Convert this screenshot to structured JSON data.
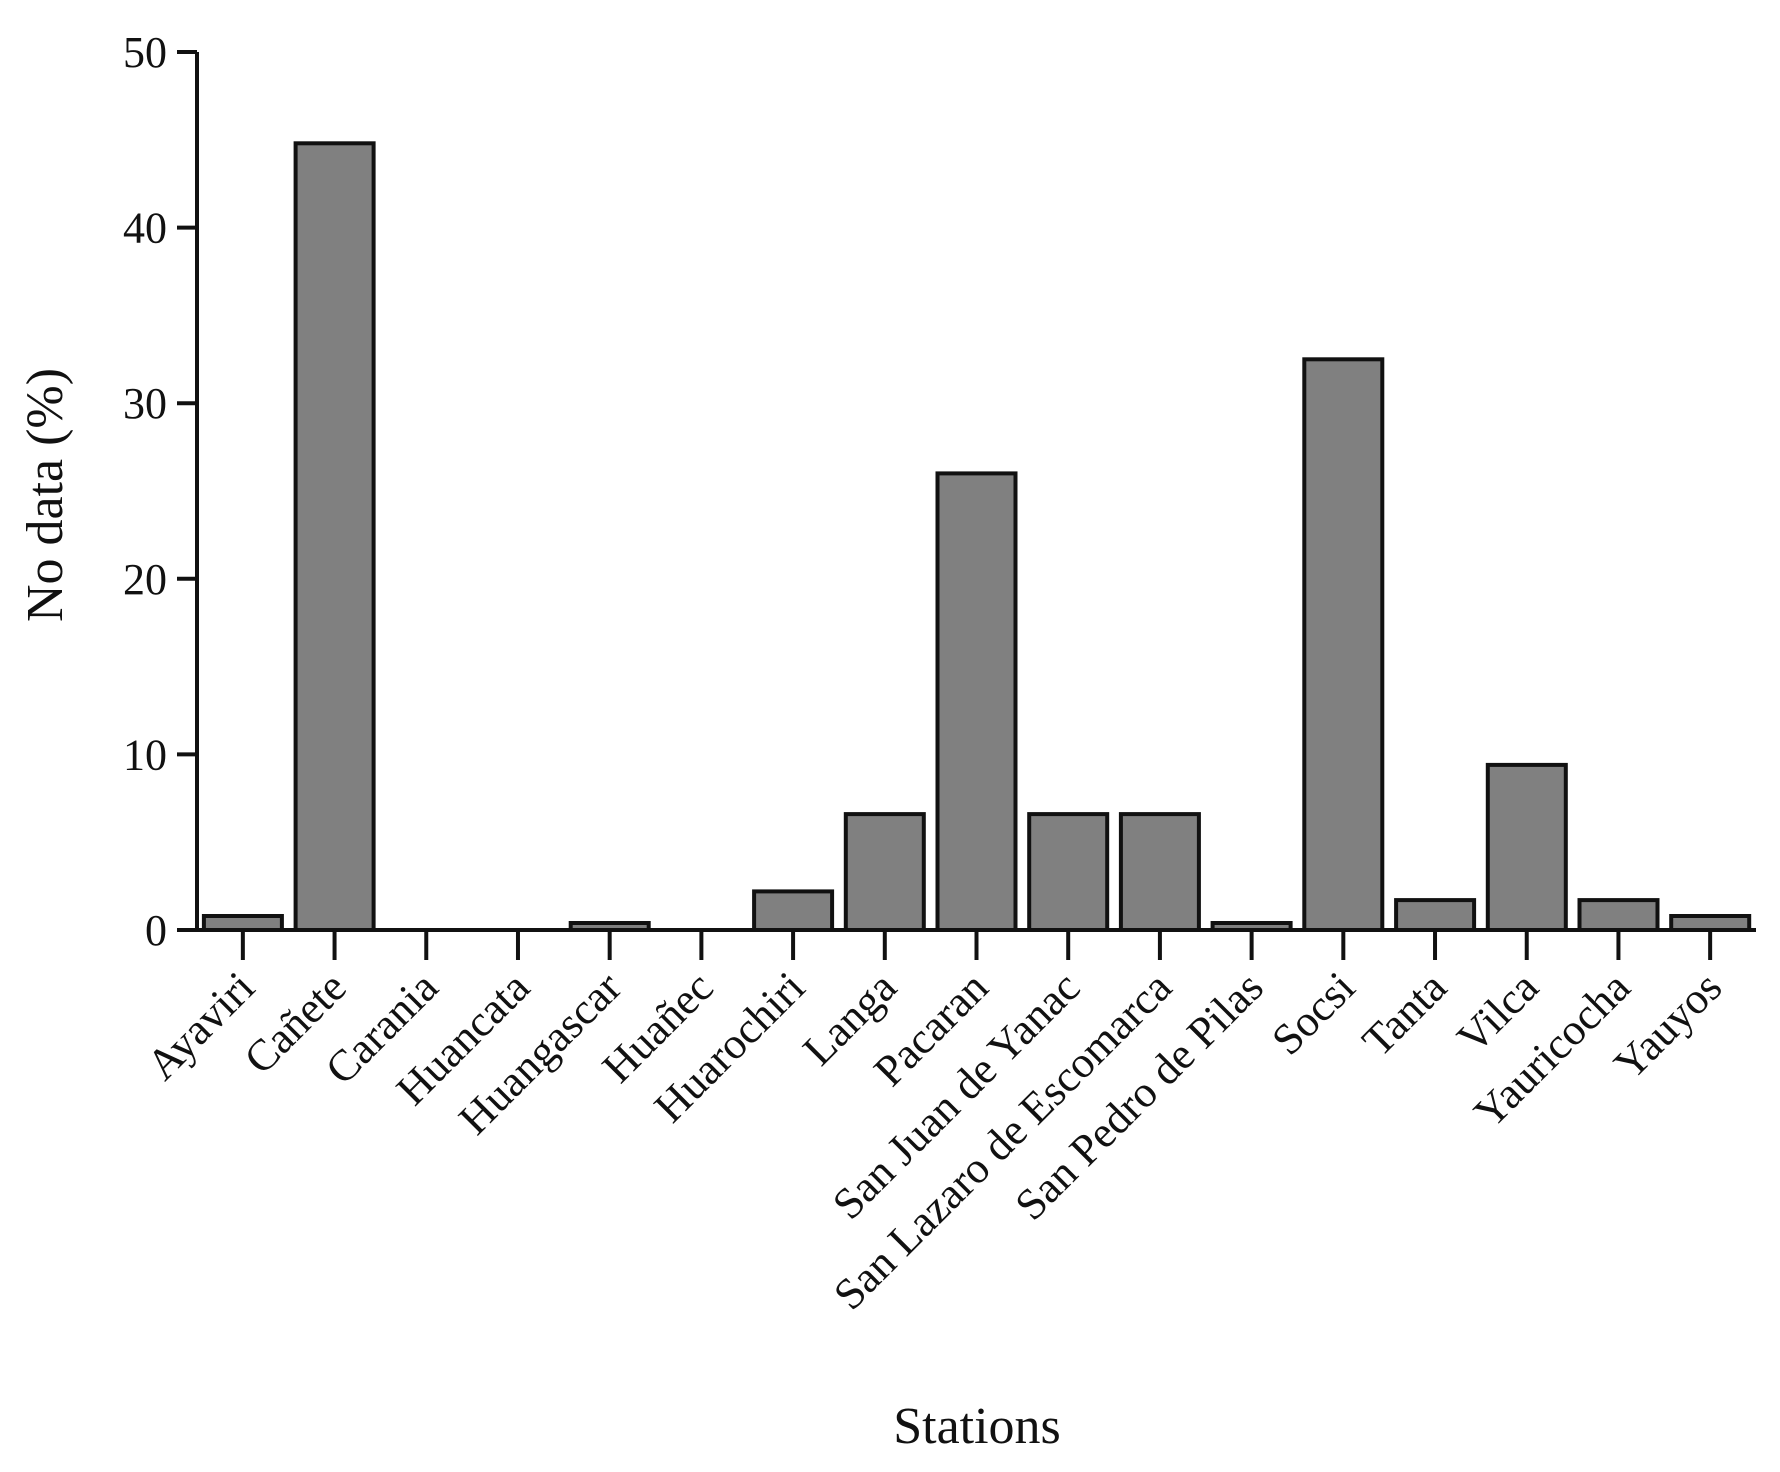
{
  "chart_data": {
    "type": "bar",
    "categories": [
      "Ayaviri",
      "Cañete",
      "Carania",
      "Huancata",
      "Huangascar",
      "Huañec",
      "Huarochiri",
      "Langa",
      "Pacaran",
      "San Juan de Yanac",
      "San Lazaro de Escomarca",
      "San Pedro de Pilas",
      "Socsi",
      "Tanta",
      "Vilca",
      "Yauricocha",
      "Yauyos"
    ],
    "values": [
      0.8,
      44.8,
      0,
      0,
      0.4,
      0,
      2.2,
      6.6,
      26.0,
      6.6,
      6.6,
      0.4,
      32.5,
      1.7,
      9.4,
      1.7,
      0.8
    ],
    "title": "",
    "xlabel": "Stations",
    "ylabel": "No data (%)",
    "ylim": [
      0,
      50
    ],
    "yticks": [
      "0",
      "10",
      "20",
      "30",
      "40",
      "50"
    ],
    "grid": false,
    "bar_color": "#808080",
    "edge_color": "#111111"
  }
}
